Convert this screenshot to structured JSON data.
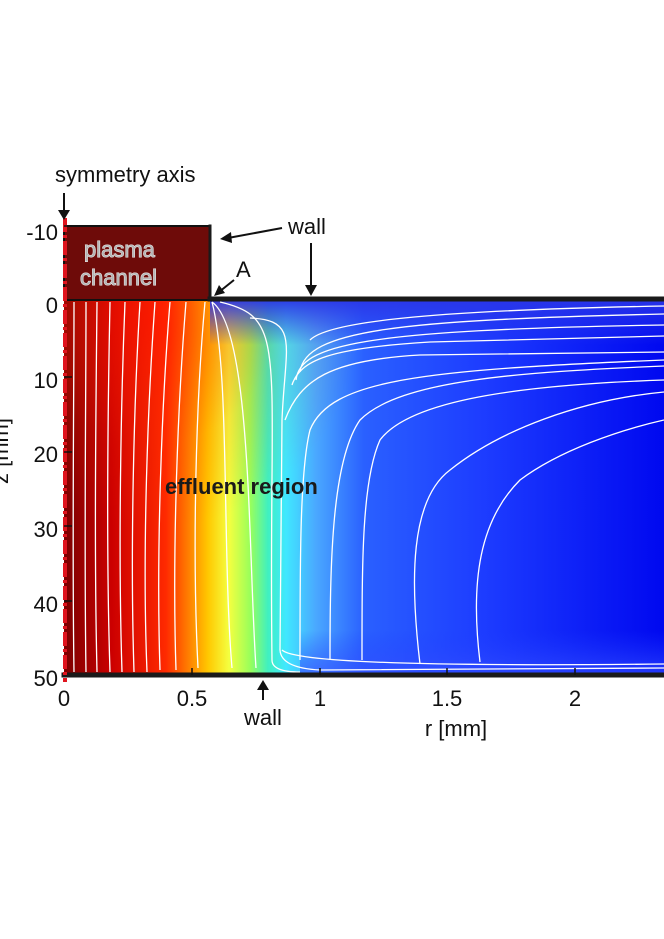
{
  "figure": {
    "annotations": {
      "symmetry_axis": "symmetry axis",
      "wall_top": "wall",
      "wall_bottom": "wall",
      "point_a": "A",
      "plasma_channel_line1": "plasma",
      "plasma_channel_line2": "channel",
      "effluent_region": "effluent region"
    },
    "x_axis": {
      "label": "r [mm]",
      "ticks": [
        "0",
        "0.5",
        "1",
        "1.5",
        "2"
      ]
    },
    "y_axis": {
      "label": "z [mm]",
      "ticks": [
        "-10",
        "0",
        "10",
        "20",
        "30",
        "40",
        "50"
      ]
    },
    "colors": {
      "plasma_channel": "#6e0b09",
      "hot": "#e60000",
      "mid": "#ffff33",
      "cold": "#0000f5",
      "axis_line": "#e0141e",
      "wall": "#1a1a1a",
      "contour": "#ffffff"
    }
  }
}
